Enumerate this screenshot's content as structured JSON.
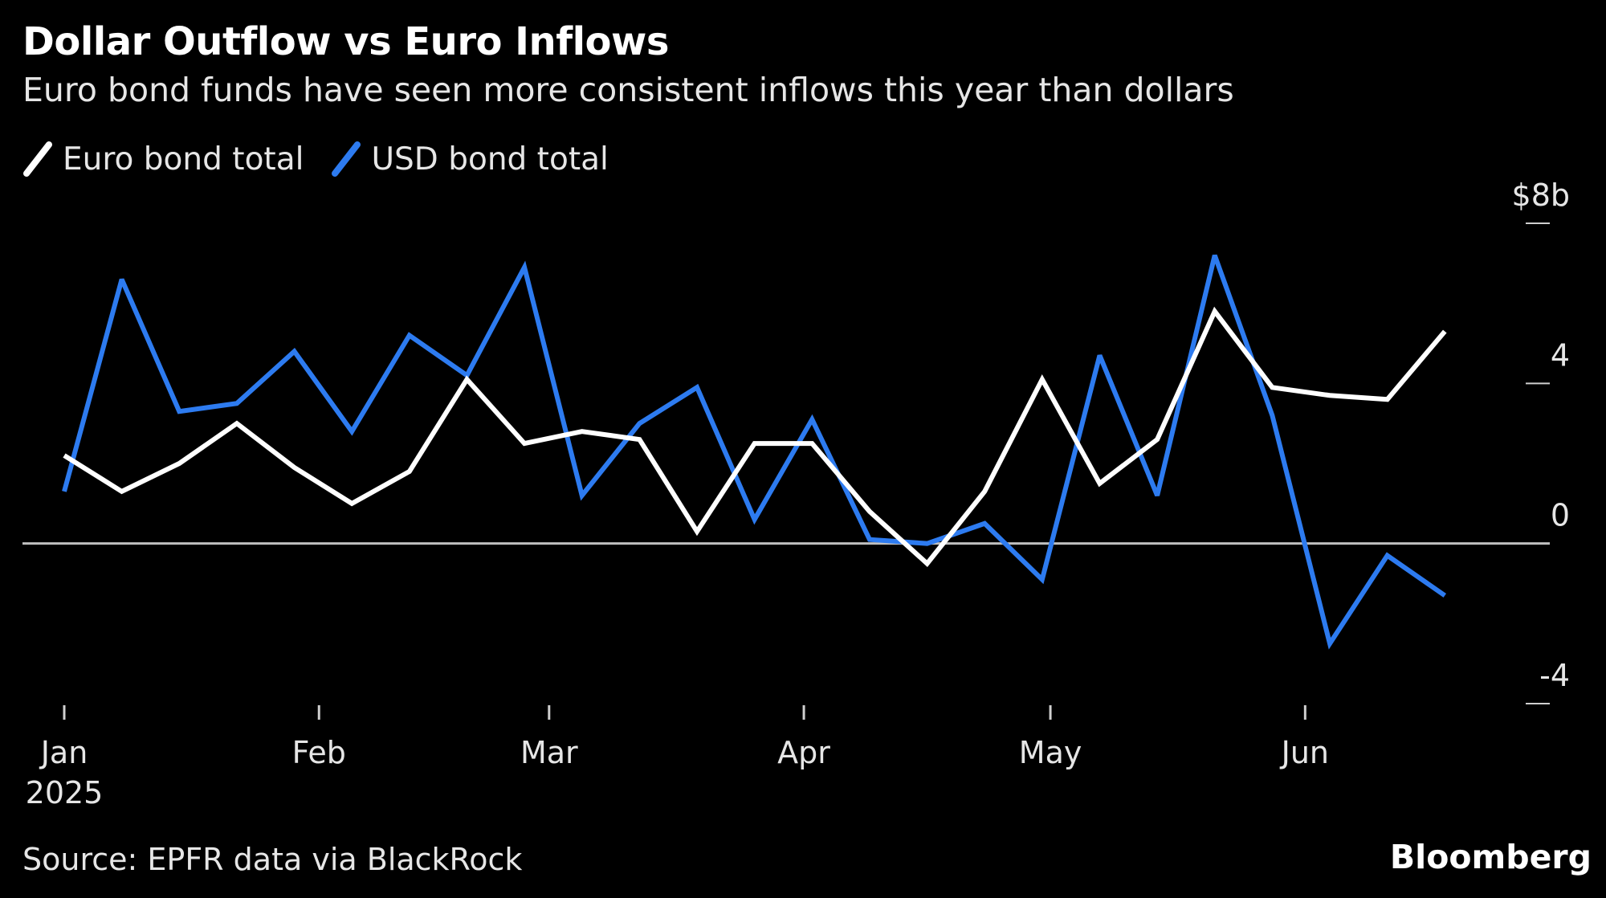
{
  "title": "Dollar Outflow vs Euro Inflows",
  "subtitle": "Euro bond funds have seen more consistent inflows this year than dollars",
  "source": "Source: EPFR data via BlackRock",
  "brand": "Bloomberg",
  "colors": {
    "background": "#000000",
    "euro": "#ffffff",
    "usd": "#2d7bf0",
    "zero_line": "#bfbfbf",
    "text": "#e6e6e6"
  },
  "chart_data": {
    "type": "line",
    "title": "Dollar Outflow vs Euro Inflows",
    "legend": "top-left",
    "grid": false,
    "ylim": [
      -4,
      8
    ],
    "yticks": [
      {
        "value": 8,
        "label": "$8b"
      },
      {
        "value": 4,
        "label": "4"
      },
      {
        "value": 0,
        "label": "0"
      },
      {
        "value": -4,
        "label": "-4"
      }
    ],
    "xlim": [
      "2025-01-01",
      "2025-06-21"
    ],
    "xticks": [
      {
        "date": "2025-01-01",
        "label": "Jan",
        "sublabel": "2025"
      },
      {
        "date": "2025-02-01",
        "label": "Feb"
      },
      {
        "date": "2025-03-01",
        "label": "Mar"
      },
      {
        "date": "2025-04-01",
        "label": "Apr"
      },
      {
        "date": "2025-05-01",
        "label": "May"
      },
      {
        "date": "2025-06-01",
        "label": "Jun"
      }
    ],
    "x": [
      "2025-01-01",
      "2025-01-08",
      "2025-01-15",
      "2025-01-22",
      "2025-01-29",
      "2025-02-05",
      "2025-02-12",
      "2025-02-19",
      "2025-02-26",
      "2025-03-05",
      "2025-03-12",
      "2025-03-19",
      "2025-03-26",
      "2025-04-02",
      "2025-04-09",
      "2025-04-16",
      "2025-04-23",
      "2025-04-30",
      "2025-05-07",
      "2025-05-14",
      "2025-05-21",
      "2025-05-28",
      "2025-06-04",
      "2025-06-11",
      "2025-06-18"
    ],
    "series": [
      {
        "name": "Euro bond total",
        "color": "#ffffff",
        "values": [
          2.2,
          1.3,
          2.0,
          3.0,
          1.9,
          1.0,
          1.8,
          4.1,
          2.5,
          2.8,
          2.6,
          0.3,
          2.5,
          2.5,
          0.8,
          -0.5,
          1.3,
          4.1,
          1.5,
          2.6,
          5.8,
          3.9,
          3.7,
          3.6,
          5.3
        ]
      },
      {
        "name": "USD bond total",
        "color": "#2d7bf0",
        "values": [
          1.3,
          6.6,
          3.3,
          3.5,
          4.8,
          2.8,
          5.2,
          4.2,
          6.9,
          1.2,
          3.0,
          3.9,
          0.6,
          3.1,
          0.1,
          0.0,
          0.5,
          -0.9,
          4.7,
          1.2,
          7.2,
          3.2,
          -2.5,
          -0.3,
          -1.3
        ]
      }
    ]
  }
}
